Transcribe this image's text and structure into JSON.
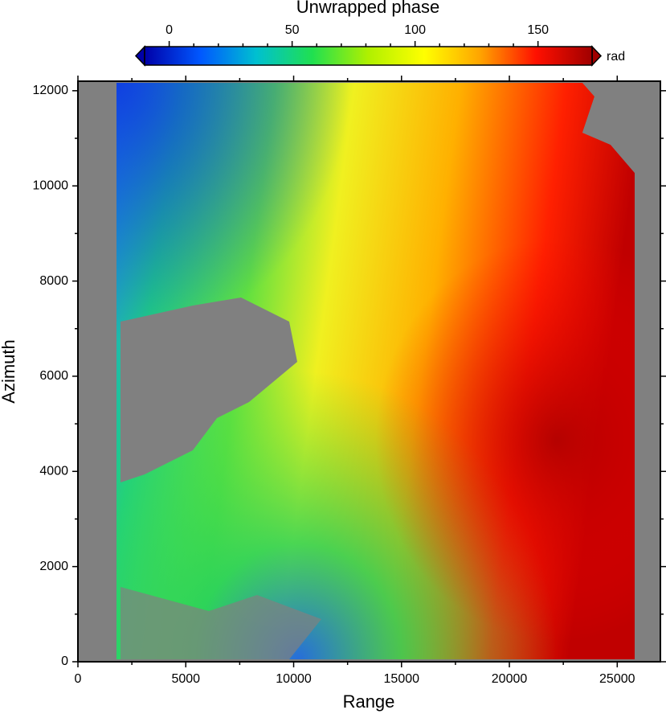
{
  "chart_data": {
    "type": "image",
    "colorbar_title": "Unwrapped phase",
    "colorbar_unit": "rad",
    "clim": [
      -10,
      172
    ],
    "cticks": [
      0,
      50,
      100,
      150
    ],
    "colormap": [
      "#0000a8",
      "#0058ff",
      "#00c0d0",
      "#20e050",
      "#b0f000",
      "#ffff00",
      "#ffa400",
      "#ff1000",
      "#a00000"
    ],
    "x_label": "Range",
    "y_label": "Azimuth",
    "xlim": [
      0,
      27000
    ],
    "ylim": [
      0,
      12200
    ],
    "xticks": [
      0,
      5000,
      10000,
      15000,
      20000,
      25000
    ],
    "yticks": [
      0,
      2000,
      4000,
      6000,
      8000,
      10000,
      12000
    ],
    "background_color": "#808080"
  }
}
